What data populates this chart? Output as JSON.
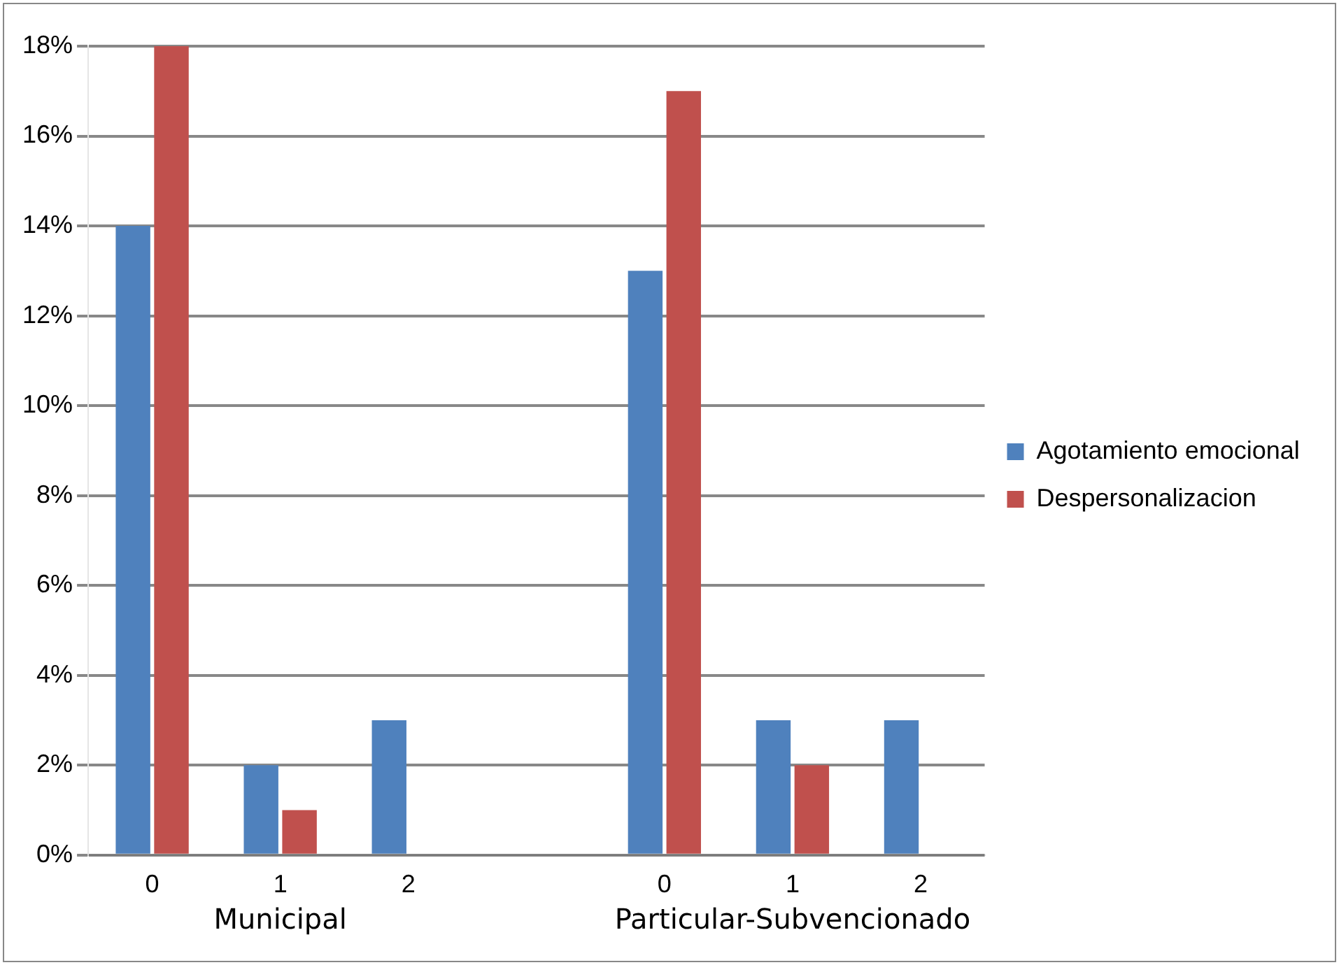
{
  "chart_data": {
    "type": "bar",
    "categories": [
      "0",
      "1",
      "2",
      null,
      "0",
      "1",
      "2"
    ],
    "series": [
      {
        "name": "Agotamiento emocional",
        "color": "#4f81bd",
        "values": [
          14,
          2,
          3,
          null,
          13,
          3,
          3
        ]
      },
      {
        "name": "Despersonalizacion",
        "color": "#c0504d",
        "values": [
          18,
          1,
          0,
          null,
          17,
          2,
          0
        ]
      }
    ],
    "ylim": [
      0,
      18
    ],
    "yticks": [
      {
        "value": 0,
        "label": "0%"
      },
      {
        "value": 2,
        "label": "2%"
      },
      {
        "value": 4,
        "label": "4%"
      },
      {
        "value": 6,
        "label": "6%"
      },
      {
        "value": 8,
        "label": "8%"
      },
      {
        "value": 10,
        "label": "10%"
      },
      {
        "value": 12,
        "label": "12%"
      },
      {
        "value": 14,
        "label": "14%"
      },
      {
        "value": 16,
        "label": "16%"
      },
      {
        "value": 18,
        "label": "18%"
      }
    ],
    "annotations": [
      "Municipal",
      "Particular-Subvencionado"
    ],
    "grid": "y",
    "legend": "right"
  }
}
